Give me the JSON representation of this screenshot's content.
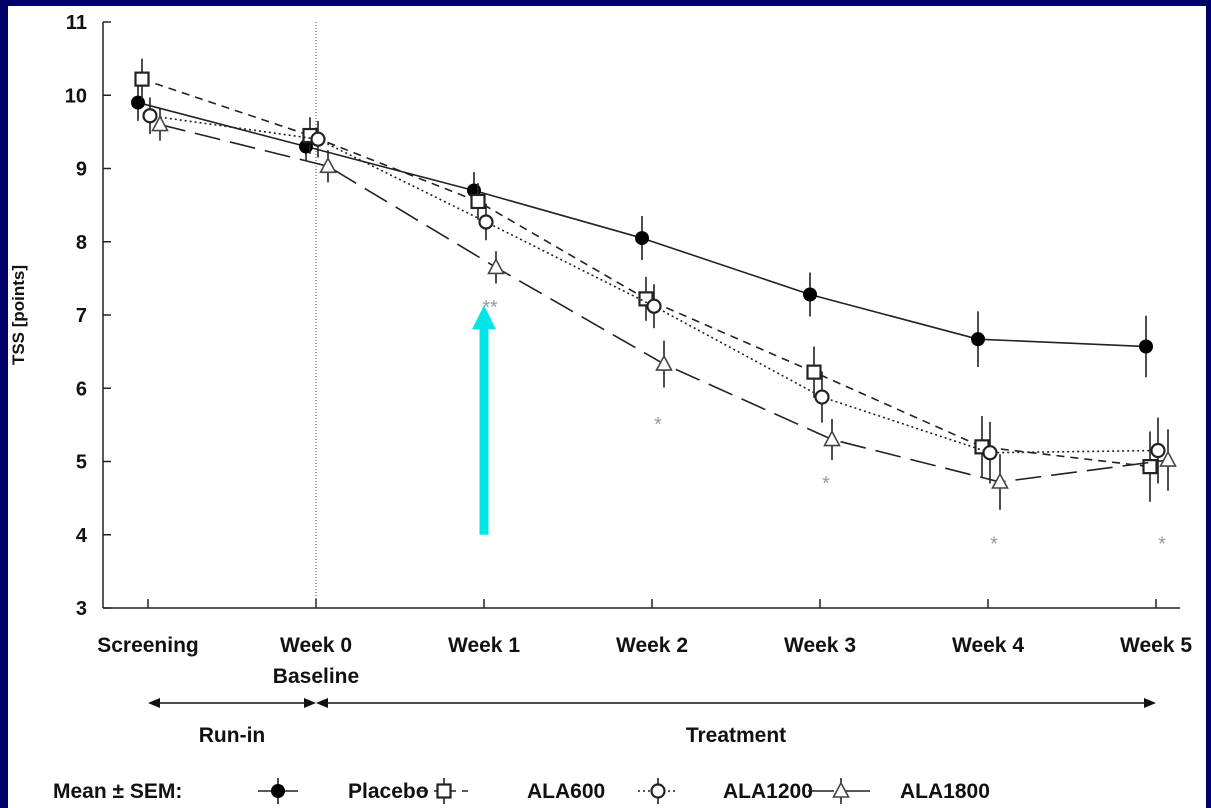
{
  "chart_data": {
    "type": "line",
    "ylabel": "TSS [points]",
    "xlabel": "",
    "ylim": [
      3,
      11
    ],
    "yticks": [
      3,
      4,
      5,
      6,
      7,
      8,
      9,
      10,
      11
    ],
    "categories": [
      "Screening",
      "Week 0",
      "Week 1",
      "Week 2",
      "Week 3",
      "Week 4",
      "Week 5"
    ],
    "baseline_label": "Baseline",
    "grid": false,
    "phases": [
      {
        "label": "Run-in",
        "from": "Screening",
        "to": "Week 0"
      },
      {
        "label": "Treatment",
        "from": "Week 0",
        "to": "Week 5"
      }
    ],
    "legend_prefix": "Mean ± SEM:",
    "legend_position": "bottom",
    "series": [
      {
        "name": "Placebo",
        "marker": "filled-circle",
        "dash": "solid",
        "values": [
          9.9,
          9.3,
          8.7,
          8.05,
          7.28,
          6.67,
          6.57
        ],
        "sem": [
          0.25,
          0.2,
          0.25,
          0.3,
          0.3,
          0.38,
          0.42
        ]
      },
      {
        "name": "ALA600",
        "marker": "open-square",
        "dash": "short-dash",
        "values": [
          10.22,
          9.45,
          8.55,
          7.22,
          6.22,
          5.2,
          4.93
        ],
        "sem": [
          0.28,
          0.25,
          0.25,
          0.3,
          0.35,
          0.42,
          0.48
        ]
      },
      {
        "name": "ALA1200",
        "marker": "open-circle",
        "dash": "dotted",
        "values": [
          9.72,
          9.4,
          8.27,
          7.12,
          5.88,
          5.12,
          5.15
        ],
        "sem": [
          0.25,
          0.25,
          0.25,
          0.3,
          0.35,
          0.42,
          0.45
        ]
      },
      {
        "name": "ALA1800",
        "marker": "open-triangle",
        "dash": "long-dash",
        "values": [
          9.6,
          9.03,
          7.65,
          6.33,
          5.3,
          4.72,
          5.02
        ],
        "sem": [
          0.22,
          0.22,
          0.22,
          0.32,
          0.28,
          0.38,
          0.42
        ]
      }
    ],
    "annotations": [
      {
        "text": "**",
        "category": "Week 1",
        "y": 7.15
      },
      {
        "text": "*",
        "category": "Week 2",
        "y": 5.55
      },
      {
        "text": "*",
        "category": "Week 3",
        "y": 4.75
      },
      {
        "text": "*",
        "category": "Week 4",
        "y": 3.92
      },
      {
        "text": "*",
        "category": "Week 5",
        "y": 3.92
      }
    ],
    "highlight_arrow": {
      "color": "#00e5e5",
      "category": "Week 1",
      "from_y": 4.0,
      "to_y": 7.05
    }
  }
}
